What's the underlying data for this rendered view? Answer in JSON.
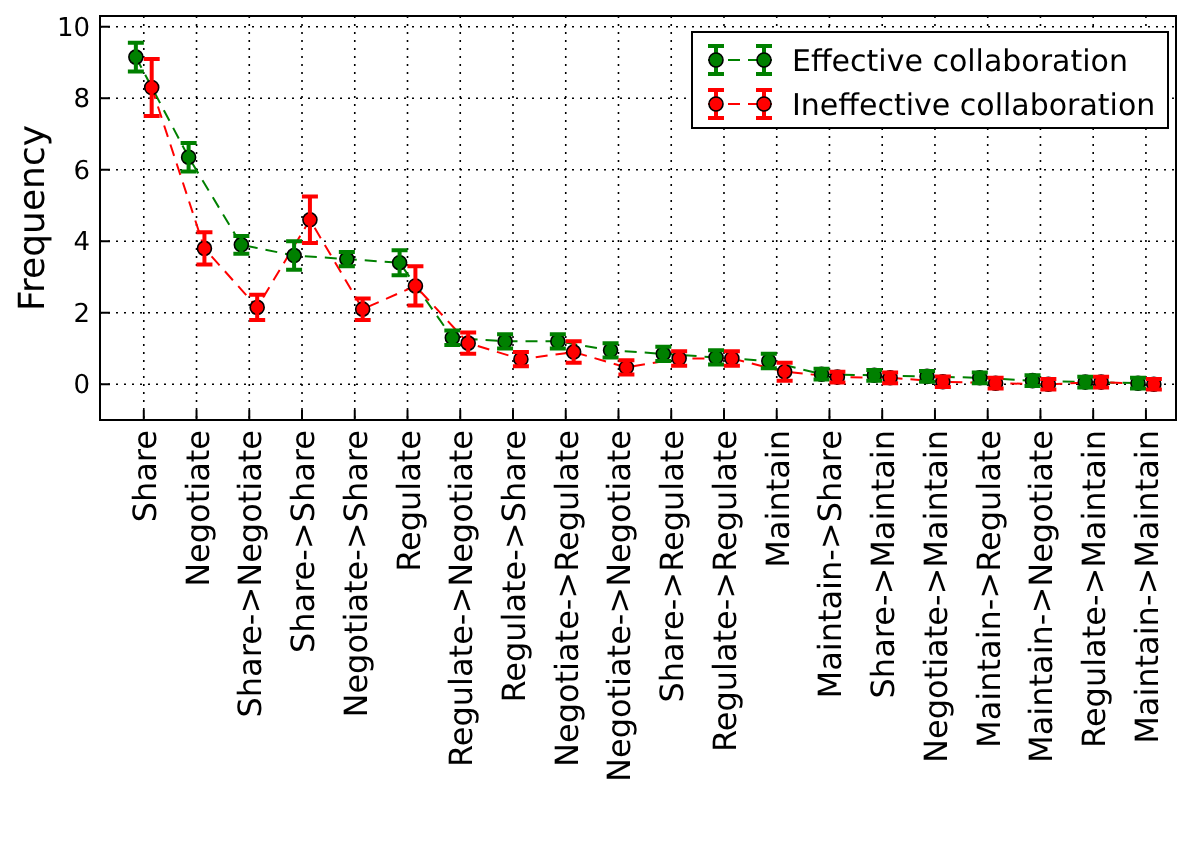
{
  "chart_data": {
    "type": "line",
    "ylabel": "Frequency",
    "categories": [
      "Share",
      "Negotiate",
      "Share->Negotiate",
      "Share->Share",
      "Negotiate->Share",
      "Regulate",
      "Regulate->Negotiate",
      "Regulate->Share",
      "Negotiate->Regulate",
      "Negotiate->Negotiate",
      "Share->Regulate",
      "Regulate->Regulate",
      "Maintain",
      "Maintain->Share",
      "Share->Maintain",
      "Negotiate->Maintain",
      "Maintain->Regulate",
      "Maintain->Negotiate",
      "Regulate->Maintain",
      "Maintain->Maintain"
    ],
    "series": [
      {
        "name": "Effective collaboration",
        "color": "#008000",
        "values": [
          9.15,
          6.35,
          3.9,
          3.6,
          3.5,
          3.4,
          1.3,
          1.2,
          1.2,
          0.95,
          0.85,
          0.75,
          0.65,
          0.28,
          0.25,
          0.22,
          0.18,
          0.1,
          0.06,
          0.03
        ],
        "errors": [
          0.4,
          0.4,
          0.25,
          0.4,
          0.2,
          0.35,
          0.2,
          0.2,
          0.2,
          0.2,
          0.2,
          0.2,
          0.2,
          0.15,
          0.15,
          0.15,
          0.15,
          0.15,
          0.15,
          0.15
        ]
      },
      {
        "name": "Ineffective collaboration",
        "color": "#ff0000",
        "values": [
          8.3,
          3.8,
          2.15,
          4.6,
          2.1,
          2.75,
          1.15,
          0.7,
          0.9,
          0.47,
          0.72,
          0.72,
          0.35,
          0.2,
          0.18,
          0.07,
          0.03,
          0.0,
          0.06,
          0.0
        ],
        "errors": [
          0.8,
          0.45,
          0.35,
          0.65,
          0.3,
          0.55,
          0.3,
          0.2,
          0.3,
          0.2,
          0.2,
          0.2,
          0.25,
          0.15,
          0.15,
          0.15,
          0.15,
          0.15,
          0.15,
          0.15
        ]
      }
    ],
    "ylim": [
      -1,
      10.3
    ],
    "yticks": [
      0,
      2,
      4,
      6,
      8,
      10
    ],
    "grid": true,
    "legend": "top right",
    "marker": "circle",
    "line_style": "dashed"
  }
}
